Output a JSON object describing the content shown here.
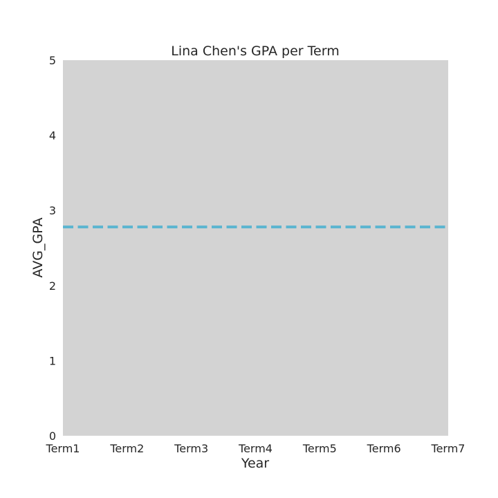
{
  "chart_data": {
    "type": "line",
    "title": "Lina Chen's GPA per Term",
    "xlabel": "Year",
    "ylabel": "AVG_GPA",
    "categories": [
      "Term1",
      "Term2",
      "Term3",
      "Term4",
      "Term5",
      "Term6",
      "Term7"
    ],
    "yticks": [
      0,
      1,
      2,
      3,
      4,
      5
    ],
    "ylim": [
      0,
      5
    ],
    "grid": false,
    "legend": "none",
    "reference_line": {
      "y": 2.78,
      "style": "dashed"
    },
    "colors": {
      "plot_background": "#d3d3d3",
      "reference_line": "#5bb5d0",
      "text": "#262626"
    }
  }
}
